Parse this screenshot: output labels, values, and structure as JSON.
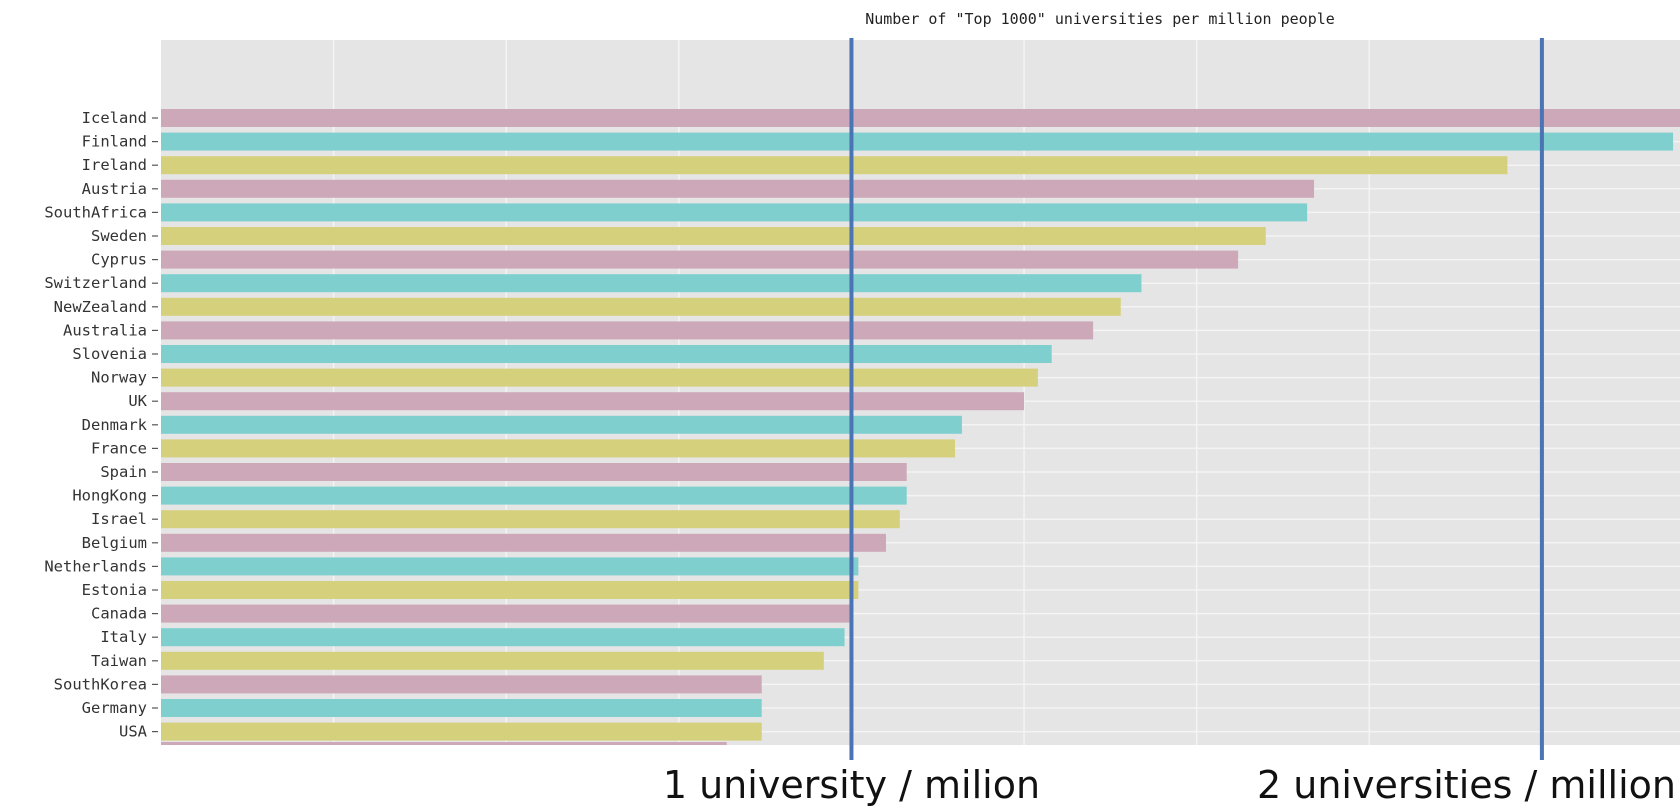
{
  "chart_data": {
    "type": "bar",
    "orientation": "horizontal",
    "title": "Number of \"Top 1000\" universities per million people",
    "categories": [
      "Iceland",
      "Finland",
      "Ireland",
      "Austria",
      "SouthAfrica",
      "Sweden",
      "Cyprus",
      "Switzerland",
      "NewZealand",
      "Australia",
      "Slovenia",
      "Norway",
      "UK",
      "Denmark",
      "France",
      "Spain",
      "HongKong",
      "Israel",
      "Belgium",
      "Netherlands",
      "Estonia",
      "Canada",
      "Italy",
      "Taiwan",
      "SouthKorea",
      "Germany",
      "USA"
    ],
    "values": [
      2.25,
      2.19,
      1.95,
      1.67,
      1.66,
      1.6,
      1.56,
      1.42,
      1.39,
      1.35,
      1.29,
      1.27,
      1.25,
      1.16,
      1.15,
      1.08,
      1.08,
      1.07,
      1.05,
      1.01,
      1.01,
      1.0,
      0.99,
      0.96,
      0.87,
      0.87,
      0.87
    ],
    "bar_colors": [
      "#cda8b9",
      "#7fcfcf",
      "#d4d07c"
    ],
    "xlim": [
      0,
      2.2
    ],
    "grid": true,
    "background_color": "#e5e5e5",
    "reference_lines": [
      {
        "value": 1,
        "label": "1 university / milion",
        "color": "#4a74b3"
      },
      {
        "value": 2,
        "label": "2 universities / million",
        "color": "#4a74b3"
      }
    ]
  }
}
